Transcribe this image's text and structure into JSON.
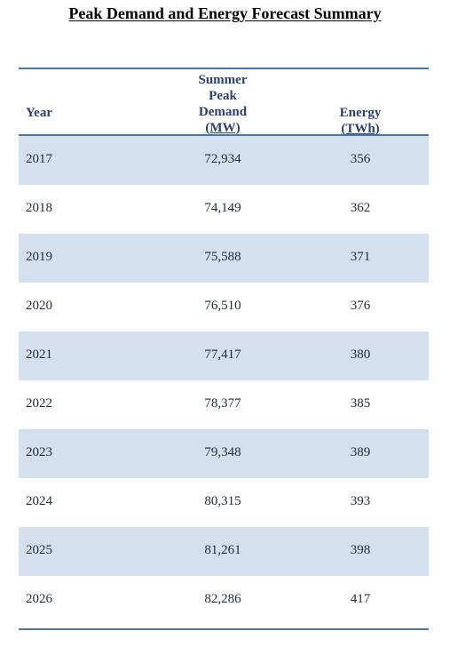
{
  "title": "Peak Demand and Energy Forecast Summary",
  "headers": {
    "year": "Year",
    "demand_lines": [
      "Summer",
      "Peak",
      "Demand",
      "(MW)"
    ],
    "energy_lines": [
      "Energy",
      "(TWh)"
    ]
  },
  "rows": [
    {
      "year": "2017",
      "demand": "72,934",
      "energy": "356"
    },
    {
      "year": "2018",
      "demand": "74,149",
      "energy": "362"
    },
    {
      "year": "2019",
      "demand": "75,588",
      "energy": "371"
    },
    {
      "year": "2020",
      "demand": "76,510",
      "energy": "376"
    },
    {
      "year": "2021",
      "demand": "77,417",
      "energy": "380"
    },
    {
      "year": "2022",
      "demand": "78,377",
      "energy": "385"
    },
    {
      "year": "2023",
      "demand": "79,348",
      "energy": "389"
    },
    {
      "year": "2024",
      "demand": "80,315",
      "energy": "393"
    },
    {
      "year": "2025",
      "demand": "81,261",
      "energy": "398"
    },
    {
      "year": "2026",
      "demand": "82,286",
      "energy": "417"
    }
  ],
  "colors": {
    "rule": "#4a76ad",
    "row_shade": "#d5e0ee",
    "header_text": "#2a3f73"
  }
}
